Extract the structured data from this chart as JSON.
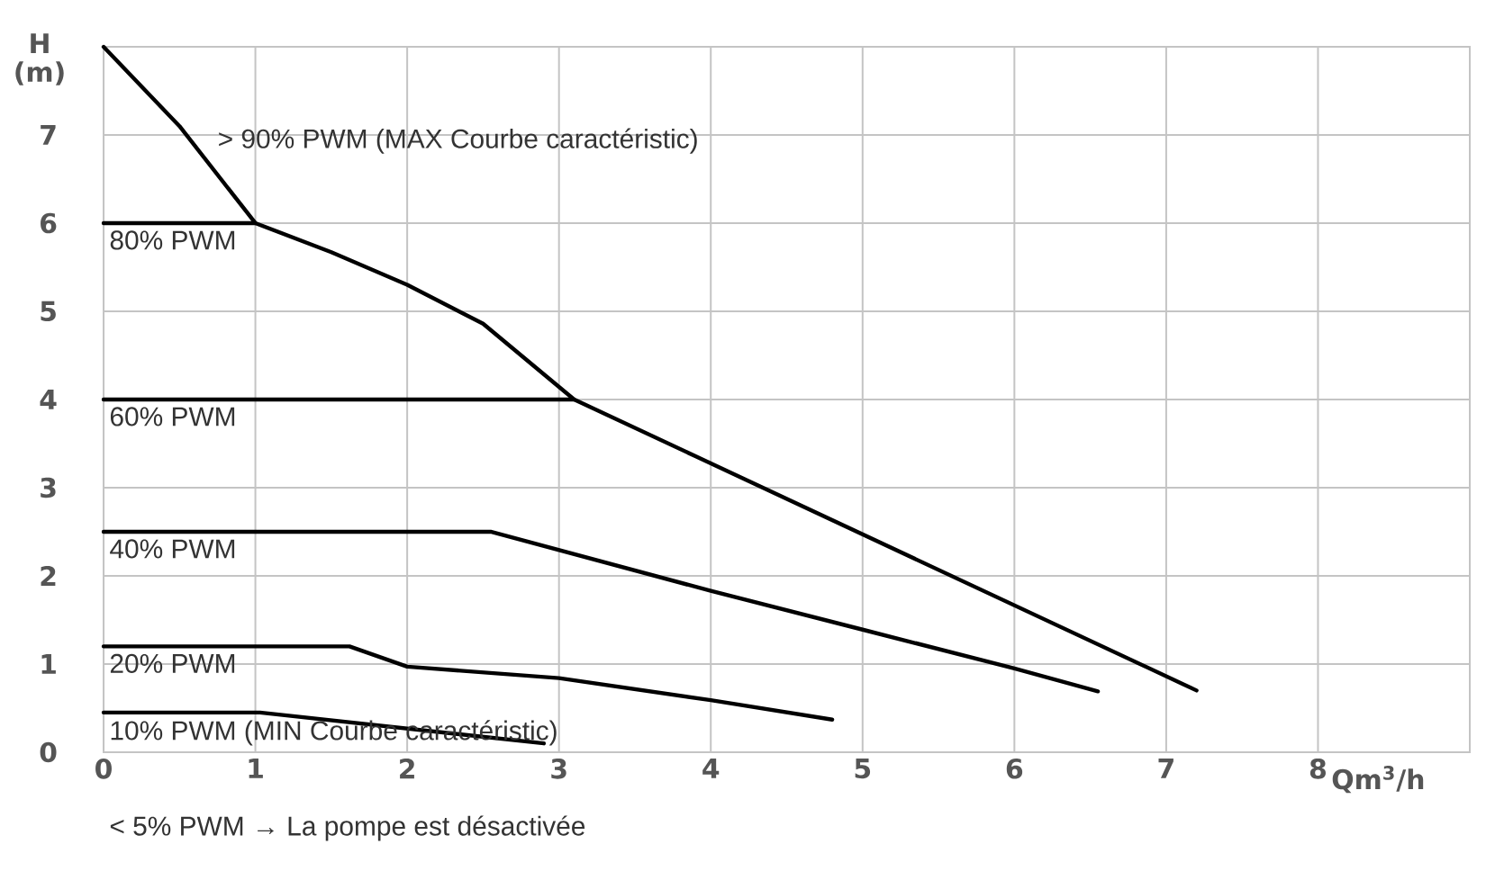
{
  "chart_data": {
    "type": "line",
    "xlabel": "Qm$^{3}$/h",
    "ylabel": "H (m)",
    "xlim": [
      0,
      9
    ],
    "ylim": [
      0,
      8
    ],
    "xticks": [
      0,
      1,
      2,
      3,
      4,
      5,
      6,
      7,
      8
    ],
    "yticks": [
      0,
      1,
      2,
      3,
      4,
      5,
      6,
      7
    ],
    "grid": true,
    "annotations": [
      "< 5% PWM → La pompe est désactivée"
    ],
    "series": [
      {
        "name": "> 90% PWM (MAX Courbe caractéristic)",
        "color": "#000000",
        "x": [
          0,
          0.5,
          1,
          1.5,
          2,
          2.5,
          3.1,
          7.2
        ],
        "values": [
          8,
          7.1,
          6,
          5.67,
          5.3,
          4.86,
          4,
          0.7
        ]
      },
      {
        "name": "80% PWM",
        "color": "#000000",
        "x": [
          0,
          1
        ],
        "values": [
          6,
          6
        ]
      },
      {
        "name": "60% PWM",
        "color": "#000000",
        "x": [
          0,
          3.1
        ],
        "values": [
          4,
          4
        ]
      },
      {
        "name": "40% PWM",
        "color": "#000000",
        "x": [
          0,
          2.55,
          4,
          5,
          6,
          6.55
        ],
        "values": [
          2.5,
          2.5,
          1.83,
          1.39,
          0.95,
          0.69
        ]
      },
      {
        "name": "20% PWM",
        "color": "#000000",
        "x": [
          0,
          1.62,
          2,
          3,
          4,
          4.8
        ],
        "values": [
          1.2,
          1.2,
          0.97,
          0.84,
          0.59,
          0.37
        ]
      },
      {
        "name": "10% PWM (MIN Courbe caractéristic)",
        "color": "#000000",
        "x": [
          0,
          1.03,
          2.9
        ],
        "values": [
          0.45,
          0.45,
          0.1
        ]
      }
    ]
  }
}
